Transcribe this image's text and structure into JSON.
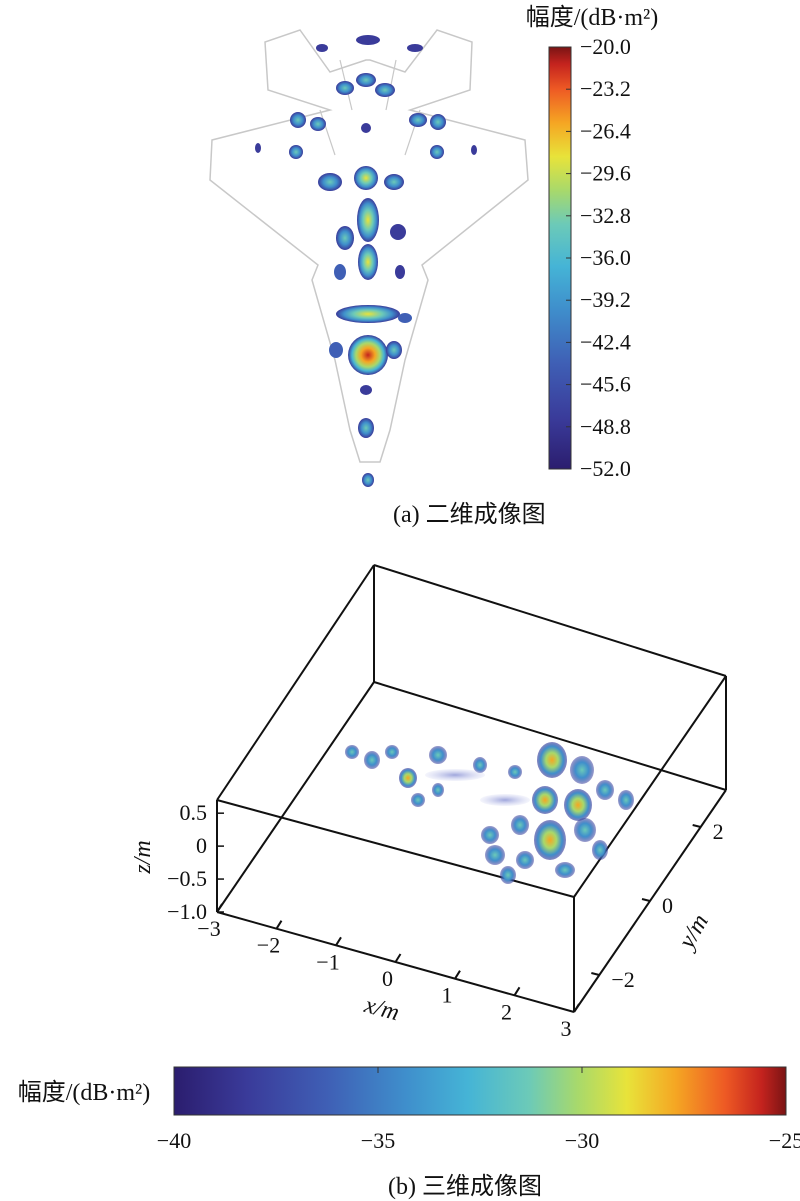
{
  "panel_a": {
    "caption": "(a) 二维成像图",
    "colorbar_title": "幅度/(dB·m²)",
    "colorbar_ticks": [
      "−20.0",
      "−23.2",
      "−26.4",
      "−29.6",
      "−32.8",
      "−36.0",
      "−39.2",
      "−42.4",
      "−45.6",
      "−48.8",
      "−52.0"
    ]
  },
  "panel_b": {
    "caption": "(b) 三维成像图",
    "colorbar_title": "幅度/(dB·m²)",
    "colorbar_ticks": [
      "−40",
      "−35",
      "−30",
      "−25"
    ],
    "x_label": "x/m",
    "y_label": "y/m",
    "z_label": "z/m",
    "x_ticks": [
      "−3",
      "−2",
      "−1",
      "0",
      "1",
      "2",
      "3"
    ],
    "y_ticks": [
      "2",
      "0",
      "−2"
    ],
    "z_ticks": [
      "0.5",
      "0",
      "−0.5",
      "−1.0"
    ]
  },
  "colormap": [
    "#2b1d6e",
    "#3a3b9a",
    "#3f5fb5",
    "#3f8fcc",
    "#45b4d6",
    "#6ccab8",
    "#a8d96b",
    "#e8e33a",
    "#f5a623",
    "#ee5a24",
    "#c4231e",
    "#7a1414"
  ],
  "chart_data": [
    {
      "type": "heatmap",
      "title": "(a) 二维成像图",
      "colorbar_label": "幅度/(dB·m²)",
      "color_range": [
        -52.0,
        -20.0
      ],
      "colorbar_ticks": [
        -20.0,
        -23.2,
        -26.4,
        -29.6,
        -32.8,
        -36.0,
        -39.2,
        -42.4,
        -45.6,
        -48.8,
        -52.0
      ]
    },
    {
      "type": "scatter",
      "title": "(b) 三维成像图",
      "xlabel": "x/m",
      "ylabel": "y/m",
      "zlabel": "z/m",
      "xlim": [
        -3,
        3
      ],
      "ylim": [
        -3,
        3
      ],
      "zlim": [
        -1.0,
        0.5
      ],
      "x_ticks": [
        -3,
        -2,
        -1,
        0,
        1,
        2,
        3
      ],
      "y_ticks": [
        -2,
        0,
        2
      ],
      "z_ticks": [
        -1.0,
        -0.5,
        0,
        0.5
      ],
      "colorbar_label": "幅度/(dB·m²)",
      "color_range": [
        -40,
        -25
      ],
      "colorbar_ticks": [
        -40,
        -35,
        -30,
        -25
      ]
    }
  ]
}
